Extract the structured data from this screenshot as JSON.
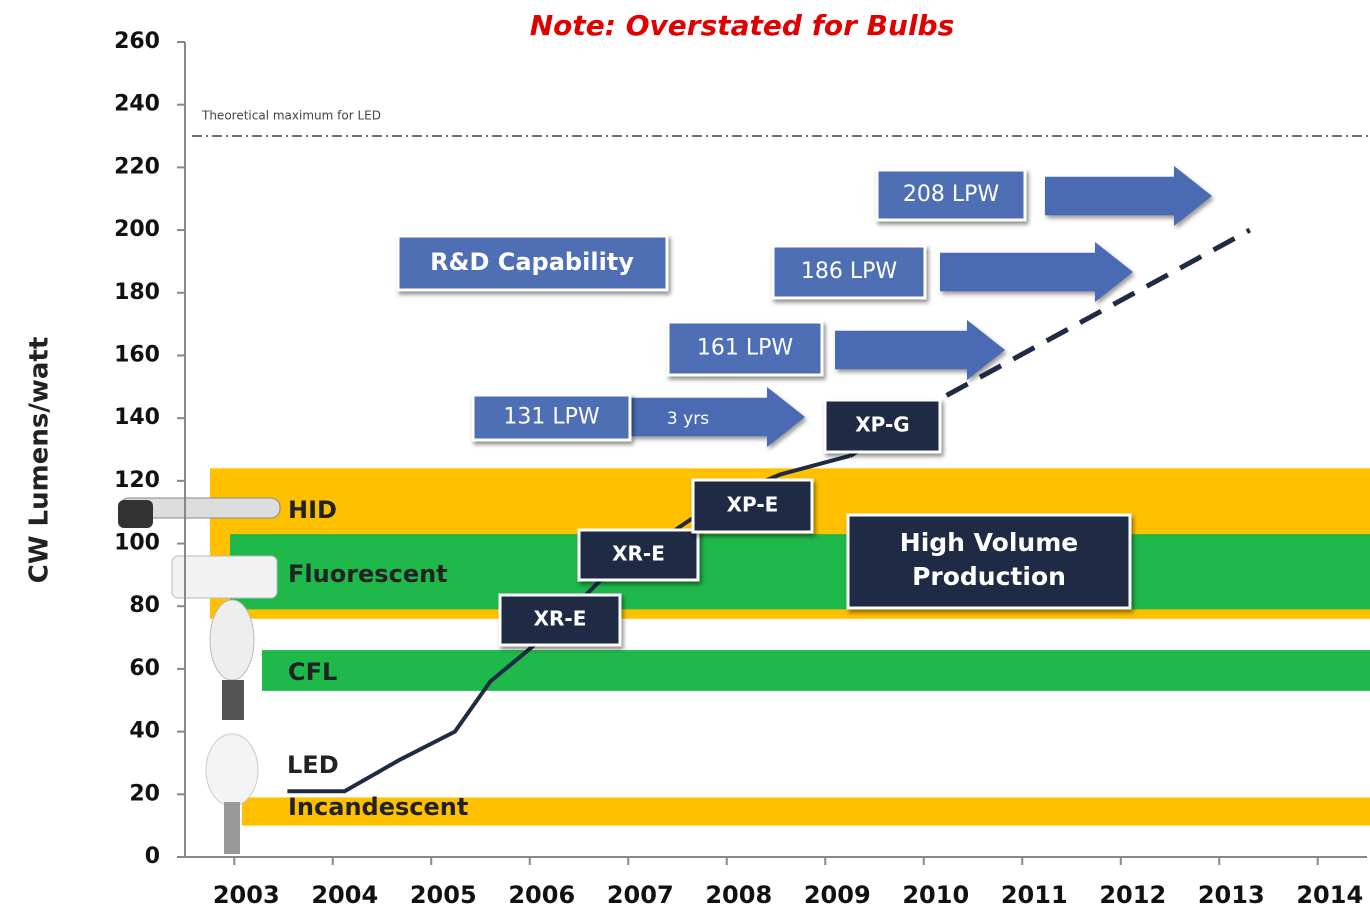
{
  "chart_data": {
    "type": "line",
    "title": "Note: Overstated for Bulbs",
    "y_label": "CW Lumens/watt",
    "xlim": [
      2002.5,
      2014.5
    ],
    "xticks": [
      2003,
      2004,
      2005,
      2006,
      2007,
      2008,
      2009,
      2010,
      2011,
      2012,
      2013,
      2014
    ],
    "ylim": [
      0,
      260
    ],
    "yticks": [
      0,
      20,
      40,
      60,
      80,
      100,
      120,
      140,
      160,
      180,
      200,
      220,
      240,
      260
    ],
    "series": [
      {
        "name": "LED",
        "color": "#1f2a44",
        "x": [
          2003.54,
          2004.12,
          2004.68,
          2005.24,
          2005.6,
          2006.1,
          2006.71,
          2007.32,
          2007.93,
          2008.54,
          2009.25
        ],
        "values": [
          21,
          21,
          31,
          40,
          56,
          69,
          88,
          101,
          114,
          122,
          128
        ]
      }
    ],
    "projection": {
      "color": "#1f2a44",
      "x": [
        2009.25,
        2010.16,
        2013.31
      ],
      "values": [
        128,
        146,
        200
      ]
    },
    "reference_line": {
      "label": "Theoretical maximum for LED",
      "value": 230
    },
    "bands": [
      {
        "label": "HID",
        "low": 76,
        "high": 124,
        "color": "#ffc000"
      },
      {
        "label": "Fluorescent",
        "low": 79,
        "high": 103,
        "color": "#1fb84a"
      },
      {
        "label": "CFL",
        "low": 53,
        "high": 66,
        "color": "#1fb84a"
      },
      {
        "label": "Incandescent",
        "low": 10,
        "high": 19,
        "color": "#ffc000"
      }
    ],
    "lpw_boxes": [
      "131 LPW",
      "161 LPW",
      "186 LPW",
      "208 LPW"
    ],
    "arrow_label": "3 yrs",
    "rd_label": "R&D Capability",
    "chip_labels": [
      "XR-E",
      "XR-E",
      "XP-E",
      "XP-G"
    ],
    "volume_label": [
      "High Volume",
      "Production"
    ]
  }
}
